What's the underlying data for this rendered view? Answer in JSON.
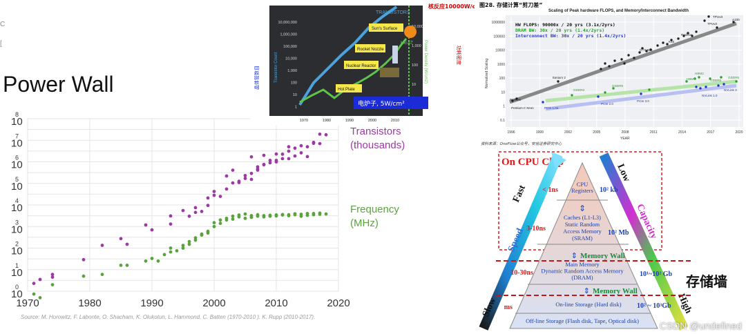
{
  "left_panel": {
    "title": "Power Wall",
    "source": "Source: M. Horowitz, F. Labonte, O. Shacham, K. Olukotun, L. Hammond, C. Batten (1970-2010 ). K. Rupp (2010-2017).",
    "edge_marks": [
      "С",
      "["
    ]
  },
  "colors": {
    "transistors": "#9b3aa3",
    "frequency": "#5aa33c",
    "grid": "#e4e4e4"
  },
  "chart_data": [
    {
      "type": "scatter",
      "title": "Power Wall",
      "xlabel": "",
      "ylabel": "",
      "xlim": [
        1970,
        2020
      ],
      "x_ticks": [
        "1970",
        "1980",
        "1990",
        "2000",
        "2010",
        "2020"
      ],
      "y_tick_labels": [
        "10",
        "10",
        "10",
        "10",
        "10",
        "10",
        "10",
        "10",
        "10"
      ],
      "y_tick_exponents": [
        "8",
        "7",
        "6",
        "5",
        "4",
        "3",
        "2",
        "1",
        "0"
      ],
      "y_scale": "log",
      "ylim_log10": [
        0,
        8
      ],
      "grid": true,
      "legend": "inline-right",
      "series": [
        {
          "name": "Transistors (thousands)",
          "color": "#9b3aa3",
          "points": [
            [
              1971,
              2.3
            ],
            [
              1972,
              3.5
            ],
            [
              1974,
              6
            ],
            [
              1974,
              4.5
            ],
            [
              1979,
              29
            ],
            [
              1982,
              134
            ],
            [
              1985,
              275
            ],
            [
              1986,
              150
            ],
            [
              1989,
              1180
            ],
            [
              1990,
              700
            ],
            [
              1993,
              3100
            ],
            [
              1993,
              1300
            ],
            [
              1995,
              5500
            ],
            [
              1996,
              3000
            ],
            [
              1997,
              7500
            ],
            [
              1997,
              4500
            ],
            [
              1998,
              5000
            ],
            [
              1999,
              9500
            ],
            [
              1999,
              21000
            ],
            [
              2000,
              28000
            ],
            [
              2000,
              42000
            ],
            [
              2001,
              25000
            ],
            [
              2002,
              55000
            ],
            [
              2002,
              220000
            ],
            [
              2003,
              105000
            ],
            [
              2003,
              410000
            ],
            [
              2004,
              125000
            ],
            [
              2004,
              110000
            ],
            [
              2005,
              230000
            ],
            [
              2005,
              169000
            ],
            [
              2006,
              291000
            ],
            [
              2006,
              154000
            ],
            [
              2006,
              1700000
            ],
            [
              2007,
              463000
            ],
            [
              2007,
              410000
            ],
            [
              2007,
              582000
            ],
            [
              2008,
              731000
            ],
            [
              2008,
              758000
            ],
            [
              2008,
              2000000
            ],
            [
              2009,
              904000
            ],
            [
              2009,
              1170000
            ],
            [
              2010,
              1170000
            ],
            [
              2010,
              2300000
            ],
            [
              2010,
              995000
            ],
            [
              2011,
              2270000
            ],
            [
              2011,
              1400000
            ],
            [
              2012,
              1400000
            ],
            [
              2012,
              3100000
            ],
            [
              2012,
              5000000
            ],
            [
              2013,
              1860000
            ],
            [
              2013,
              4310000
            ],
            [
              2014,
              2600000
            ],
            [
              2014,
              5560000
            ],
            [
              2015,
              1750000
            ],
            [
              2015,
              5000000
            ],
            [
              2016,
              7200000
            ],
            [
              2016,
              8000000
            ],
            [
              2017,
              7000000
            ],
            [
              2017,
              19200000
            ],
            [
              2018,
              18000000
            ]
          ]
        },
        {
          "name": "Frequency (MHz)",
          "color": "#5aa33c",
          "points": [
            [
              1971,
              0.74
            ],
            [
              1972,
              0.5
            ],
            [
              1974,
              2
            ],
            [
              1979,
              5
            ],
            [
              1982,
              6
            ],
            [
              1985,
              16
            ],
            [
              1986,
              16
            ],
            [
              1989,
              25
            ],
            [
              1990,
              33
            ],
            [
              1991,
              25
            ],
            [
              1992,
              50
            ],
            [
              1993,
              66
            ],
            [
              1993,
              100
            ],
            [
              1994,
              75
            ],
            [
              1995,
              133
            ],
            [
              1995,
              100
            ],
            [
              1996,
              200
            ],
            [
              1996,
              150
            ],
            [
              1997,
              300
            ],
            [
              1997,
              233
            ],
            [
              1998,
              450
            ],
            [
              1998,
              400
            ],
            [
              1999,
              600
            ],
            [
              1999,
              500
            ],
            [
              2000,
              1000
            ],
            [
              2000,
              1500
            ],
            [
              2001,
              1400
            ],
            [
              2001,
              2000
            ],
            [
              2002,
              2400
            ],
            [
              2002,
              2000
            ],
            [
              2003,
              3000
            ],
            [
              2003,
              2200
            ],
            [
              2004,
              3400
            ],
            [
              2004,
              2800
            ],
            [
              2005,
              3800
            ],
            [
              2005,
              2400
            ],
            [
              2006,
              2660
            ],
            [
              2006,
              3200
            ],
            [
              2007,
              3000
            ],
            [
              2007,
              3500
            ],
            [
              2008,
              3200
            ],
            [
              2008,
              2800
            ],
            [
              2009,
              3330
            ],
            [
              2009,
              3000
            ],
            [
              2010,
              3460
            ],
            [
              2010,
              3100
            ],
            [
              2011,
              3400
            ],
            [
              2011,
              3600
            ],
            [
              2012,
              3500
            ],
            [
              2012,
              3200
            ],
            [
              2013,
              3500
            ],
            [
              2013,
              3900
            ],
            [
              2014,
              3700
            ],
            [
              2014,
              3000
            ],
            [
              2015,
              4000
            ],
            [
              2015,
              3300
            ],
            [
              2016,
              4000
            ],
            [
              2016,
              3500
            ],
            [
              2017,
              4200
            ],
            [
              2017,
              3700
            ],
            [
              2018,
              3800
            ]
          ]
        }
      ]
    },
    {
      "type": "line",
      "title": "",
      "top_label": "TRANSISTORS",
      "top_right_text": "核反应10000W/cm²!",
      "y_axis_left_label": "Transistor Count",
      "y_axis_right_label": "Power Density (W/cm2)",
      "left_cn_label": "晶体管数目",
      "right_cn_label": "功耗密度",
      "x_ticks": [
        "1970",
        "1980",
        "1990",
        "2000",
        "2010"
      ],
      "left_ticks": [
        "10,000,000",
        "1,000,000",
        "100,000",
        "10,000",
        "1,000",
        "100",
        "10",
        "1"
      ],
      "right_ticks": [
        "10,000",
        "1,000",
        "100",
        "10",
        "1"
      ],
      "annotations": [
        "Sun's Surface",
        "Rocket Nozzle",
        "Nuclear Reactor",
        "Hot Plate",
        "HEAT"
      ],
      "box_text": "电炉子, 5W/cm²",
      "series": [
        {
          "name": "TRANSISTORS",
          "color": "#4aa3df"
        },
        {
          "name": "HEAT",
          "color": "#5ec44a"
        }
      ]
    },
    {
      "type": "scatter",
      "header": "图28. 存储计算“剪刀差”",
      "title": "Scaling of Peak hardware FLOPS, and Memory/Interconnect Bandwidth",
      "legend_lines": [
        "HW FLOPS:  90000x / 20 yrs (3.1x/2yrs)",
        "DRAM BW:   30x / 20 yrs (1.4x/2yrs)",
        "Interconnect BW:  30x / 20 yrs (1.4x/2yrs)"
      ],
      "ylabel": "Normalized Scaling",
      "xlabel": "YEAR",
      "x_ticks": [
        "1996",
        "1999",
        "2002",
        "2005",
        "2008",
        "2011",
        "2014",
        "2017",
        "2020"
      ],
      "y_ticks": [
        "1000000",
        "100000",
        "10000",
        "1000",
        "100",
        "10",
        "1",
        "0.1"
      ],
      "labels": [
        "R10000",
        "Pentium II Xeon",
        "Itanium 2",
        "GTX 580",
        "K40",
        "Radeon",
        "TPUv2",
        "TPUv3",
        "A100",
        "GDDR3",
        "GDDR5",
        "HBM",
        "HBM2",
        "GDDR6",
        "GDDR6",
        "PCIe 1.0a",
        "PCIe 2.0",
        "PCIe 3.0",
        "NVLink 1.0",
        "NVLink 3"
      ],
      "footer": "资料来源：OneFlow公众号，安信证券研究中心",
      "series": [
        {
          "name": "HW FLOPS",
          "color": "#222222"
        },
        {
          "name": "DRAM BW",
          "color": "#2ca02c"
        },
        {
          "name": "Interconnect BW",
          "color": "#2036d8"
        }
      ]
    }
  ],
  "pyramid": {
    "chip_label": "On CPU Chip",
    "speed_label": "Speed",
    "fast_label": "Fast",
    "slow_label": "Slow",
    "capacity_label": "Capacity",
    "low_label": "Low",
    "high_label": "High",
    "memory_wall_1": "Memory Wall",
    "memory_wall_2": "Memory Wall",
    "storage_wall_cn": "存储墙",
    "levels": [
      {
        "name": "CPU\nRegisters",
        "latency": "< 1ns",
        "size": "10² kb"
      },
      {
        "name": "Caches (L1-L3)\nStatic Random\nAccess Memory\n(SRAM)",
        "latency": "3-10ns",
        "size": "10² Mb"
      },
      {
        "name": "Main Memory\nDynamic Random Access Memory\n(DRAM)",
        "latency": "10-30ns",
        "size": "10¹~10² Gb"
      },
      {
        "name": "On-line Storage (Hard disk)",
        "latency": "ms",
        "size": "10² ~ 10³Gb"
      },
      {
        "name": "Off-line Storage (Flash disk, Tape, Optical disk)",
        "latency": "",
        "size": ""
      }
    ],
    "watermark": "CSDN @undefined"
  }
}
